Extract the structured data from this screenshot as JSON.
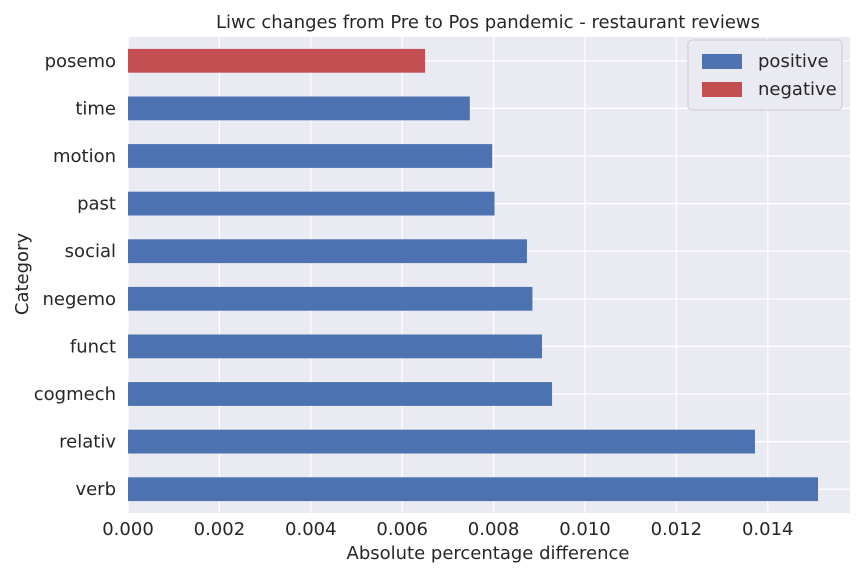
{
  "chart_data": {
    "type": "bar",
    "orientation": "horizontal",
    "title": "Liwc changes from Pre to Pos pandemic - restaurant reviews",
    "xlabel": "Absolute percentage difference",
    "ylabel": "Category",
    "xlim": [
      0,
      0.0158
    ],
    "xticks": [
      0.0,
      0.002,
      0.004,
      0.006,
      0.008,
      0.01,
      0.012,
      0.014
    ],
    "xtick_labels": [
      "0.000",
      "0.002",
      "0.004",
      "0.006",
      "0.008",
      "0.010",
      "0.012",
      "0.014"
    ],
    "grid": true,
    "legend_position": "top-right",
    "categories": [
      "verb",
      "relativ",
      "cogmech",
      "funct",
      "negemo",
      "social",
      "past",
      "motion",
      "time",
      "posemo"
    ],
    "values": [
      0.0151,
      0.01372,
      0.00928,
      0.00906,
      0.00885,
      0.00873,
      0.00802,
      0.00797,
      0.00748,
      0.0065
    ],
    "bar_types": [
      "positive",
      "positive",
      "positive",
      "positive",
      "positive",
      "positive",
      "positive",
      "positive",
      "positive",
      "negative"
    ],
    "series": [
      {
        "name": "positive",
        "color": "#4c72b0"
      },
      {
        "name": "negative",
        "color": "#c44e52"
      }
    ]
  }
}
